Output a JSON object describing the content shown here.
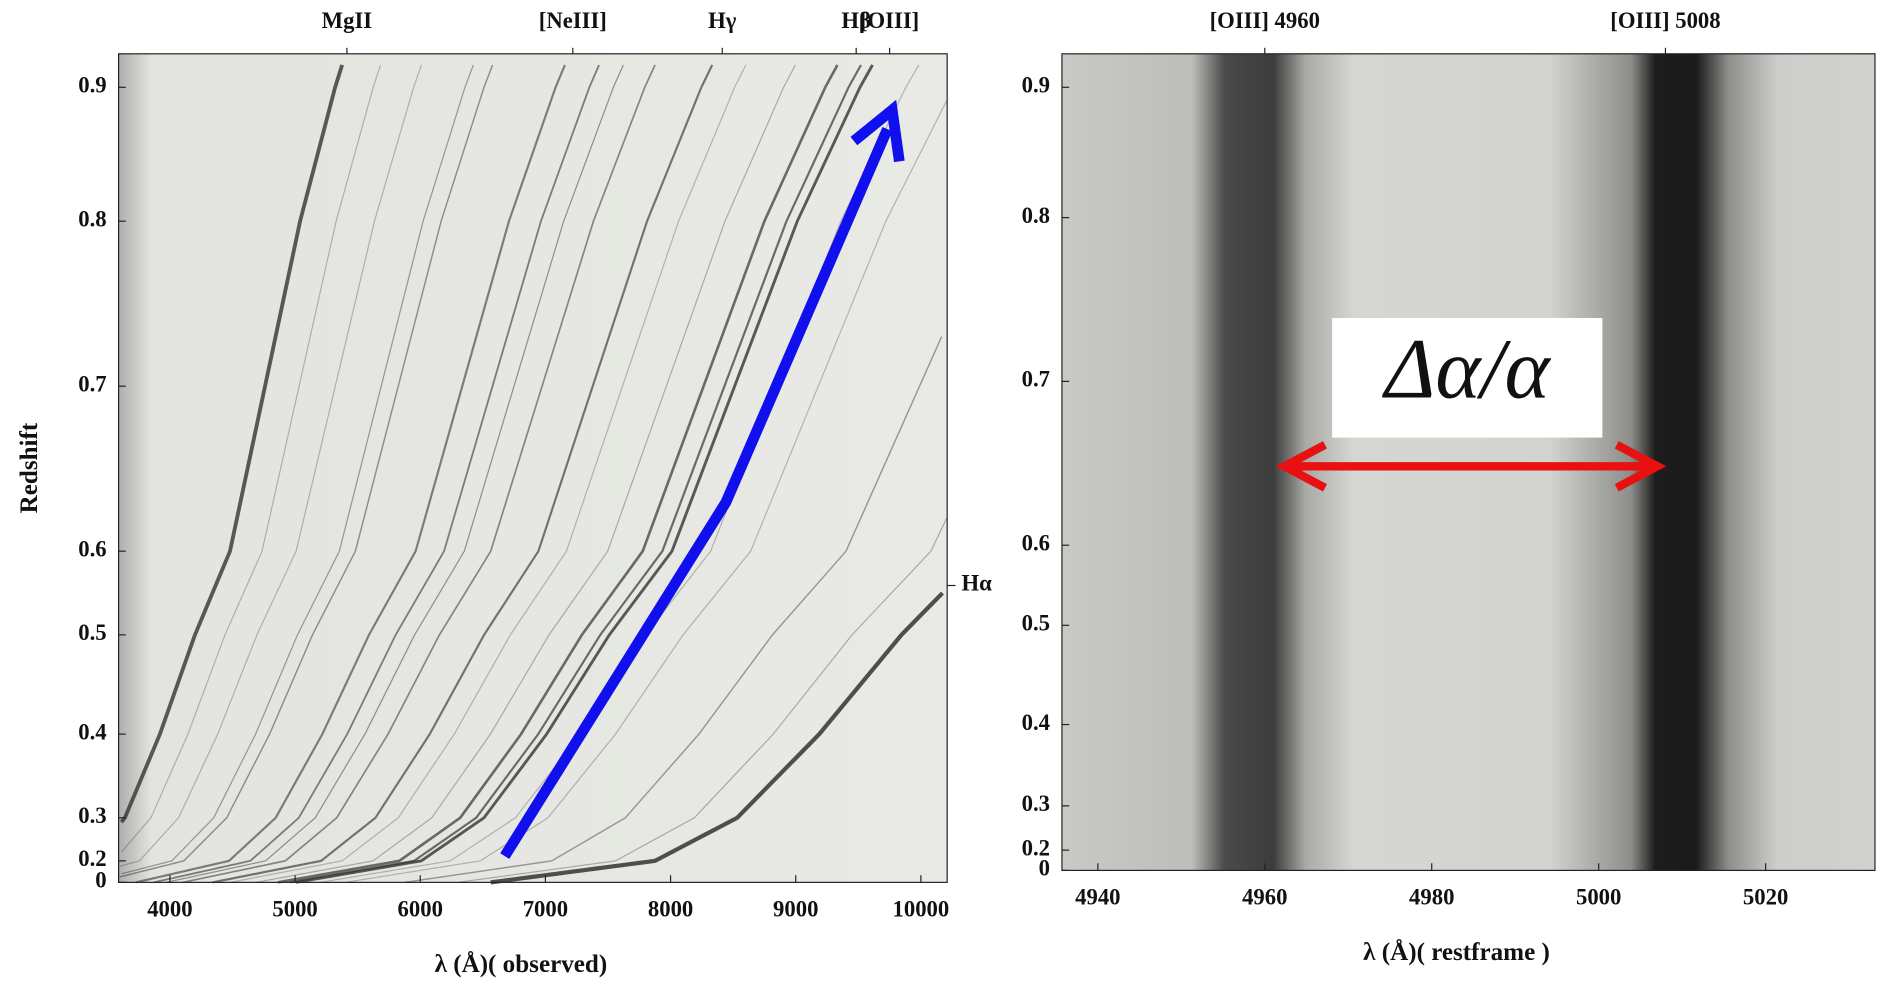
{
  "chart_data": [
    {
      "type": "image",
      "xlabel": "λ (Å)( observed)",
      "ylabel": "Redshift",
      "xlim": [
        3590,
        10210
      ],
      "ylim": [
        0,
        0.93
      ],
      "xticks": [
        4000,
        5000,
        6000,
        7000,
        8000,
        9000,
        10000
      ],
      "yticks": [
        0,
        0.2,
        0.3,
        0.4,
        0.5,
        0.6,
        0.7,
        0.8,
        0.9
      ],
      "top_ticks": [
        {
          "value": 5414,
          "label": "MgII"
        },
        {
          "value": 7219,
          "label": "[NeIII]"
        },
        {
          "value": 8413,
          "label": "Hγ"
        },
        {
          "value": 9483,
          "label": "Hβ"
        },
        {
          "value": 9750,
          "label": "[OIII]"
        }
      ],
      "right_ticks": [
        {
          "value": 0.559,
          "label": "Hα"
        }
      ]
    },
    {
      "type": "image",
      "xlabel": "λ (Å)( restframe )",
      "xlim": [
        4935.7,
        5033.1
      ],
      "ylim": [
        0,
        0.93
      ],
      "xticks": [
        4940,
        4960,
        4980,
        5000,
        5020
      ],
      "yticks": [
        0,
        0.2,
        0.3,
        0.4,
        0.5,
        0.6,
        0.7,
        0.8,
        0.9
      ],
      "top_ticks": [
        {
          "value": 4960,
          "label": "[OIII] 4960"
        },
        {
          "value": 5008,
          "label": "[OIII] 5008"
        }
      ],
      "annotation": "Δα/α"
    }
  ]
}
